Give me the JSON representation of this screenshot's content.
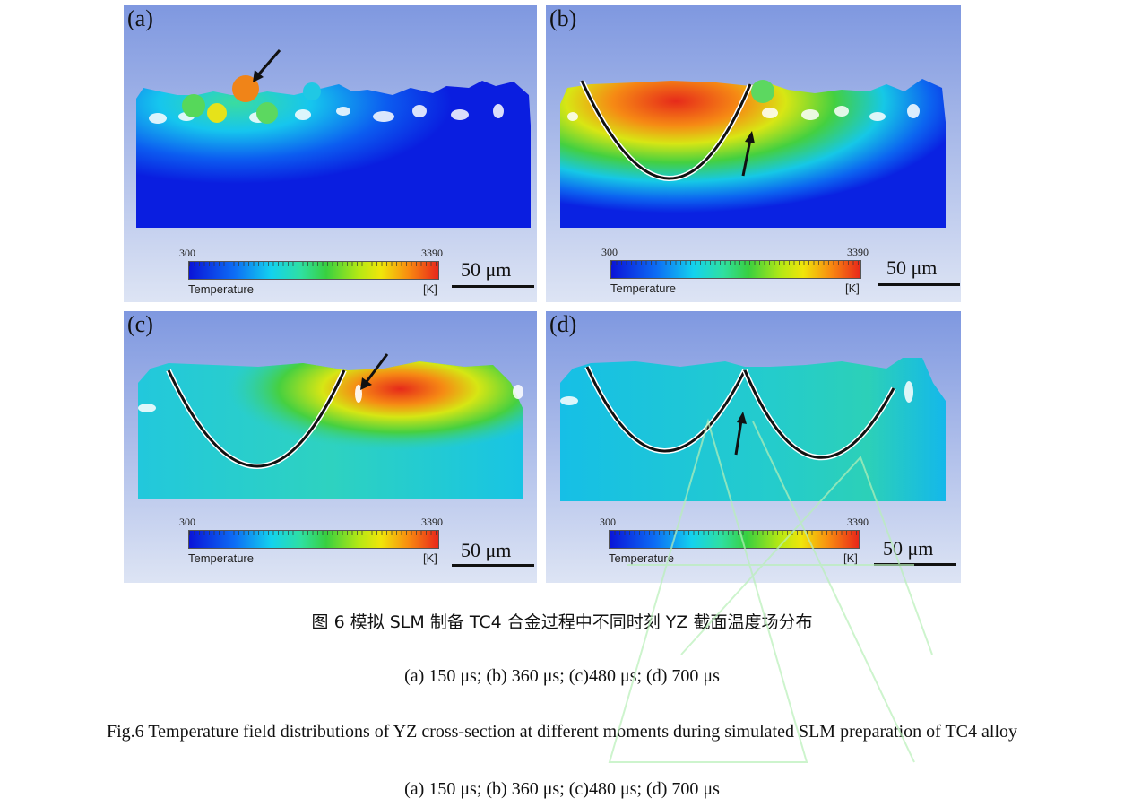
{
  "panels": [
    {
      "label": "(a)",
      "colorbar": {
        "min": "300",
        "max": "3390",
        "title": "Temperature",
        "unit": "[K]"
      },
      "scale_bar": "50 μm"
    },
    {
      "label": "(b)",
      "colorbar": {
        "min": "300",
        "max": "3390",
        "title": "Temperature",
        "unit": "[K]"
      },
      "scale_bar": "50 μm"
    },
    {
      "label": "(c)",
      "colorbar": {
        "min": "300",
        "max": "3390",
        "title": "Temperature",
        "unit": "[K]"
      },
      "scale_bar": "50 μm"
    },
    {
      "label": "(d)",
      "colorbar": {
        "min": "300",
        "max": "3390",
        "title": "Temperature",
        "unit": "[K]"
      },
      "scale_bar": "50 μm"
    }
  ],
  "colors": {
    "cold": "#0a14d8",
    "cyan": "#13d2ee",
    "green": "#38d040",
    "yellow": "#f0e60a",
    "orange": "#f98c10",
    "hot": "#e8261a",
    "background": "#90a6e4"
  },
  "caption": {
    "cn_title": "图 6  模拟 SLM 制备 TC4 合金过程中不同时刻 YZ 截面温度场分布",
    "cn_sub": "(a) 150 μs; (b) 360 μs; (c)480 μs; (d) 700 μs",
    "en_title": "Fig.6 Temperature field distributions of YZ cross-section at different moments during simulated SLM preparation of TC4 alloy",
    "en_sub": "(a) 150 μs; (b) 360 μs; (c)480 μs; (d) 700 μs"
  }
}
